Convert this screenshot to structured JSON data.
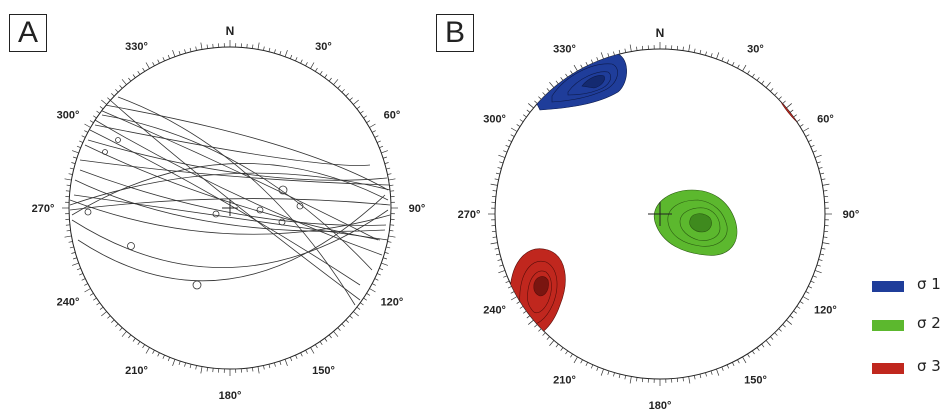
{
  "panels": [
    {
      "label": "A",
      "north": "N",
      "bearings": [
        "30°",
        "60°",
        "90°",
        "120°",
        "150°",
        "180°",
        "210°",
        "240°",
        "270°",
        "300°",
        "330°"
      ]
    },
    {
      "label": "B",
      "north": "N",
      "bearings": [
        "30°",
        "60°",
        "90°",
        "120°",
        "150°",
        "180°",
        "210°",
        "240°",
        "270°",
        "300°",
        "330°"
      ]
    }
  ],
  "legend": [
    {
      "label": "σ 1",
      "color": "#1f3d9a"
    },
    {
      "label": "σ 2",
      "color": "#5cb82e"
    },
    {
      "label": "σ 3",
      "color": "#c0271e"
    }
  ],
  "colors": {
    "sigma1": "#1f3d9a",
    "sigma2": "#5cb82e",
    "sigma3": "#c0271e",
    "ink": "#222222"
  }
}
